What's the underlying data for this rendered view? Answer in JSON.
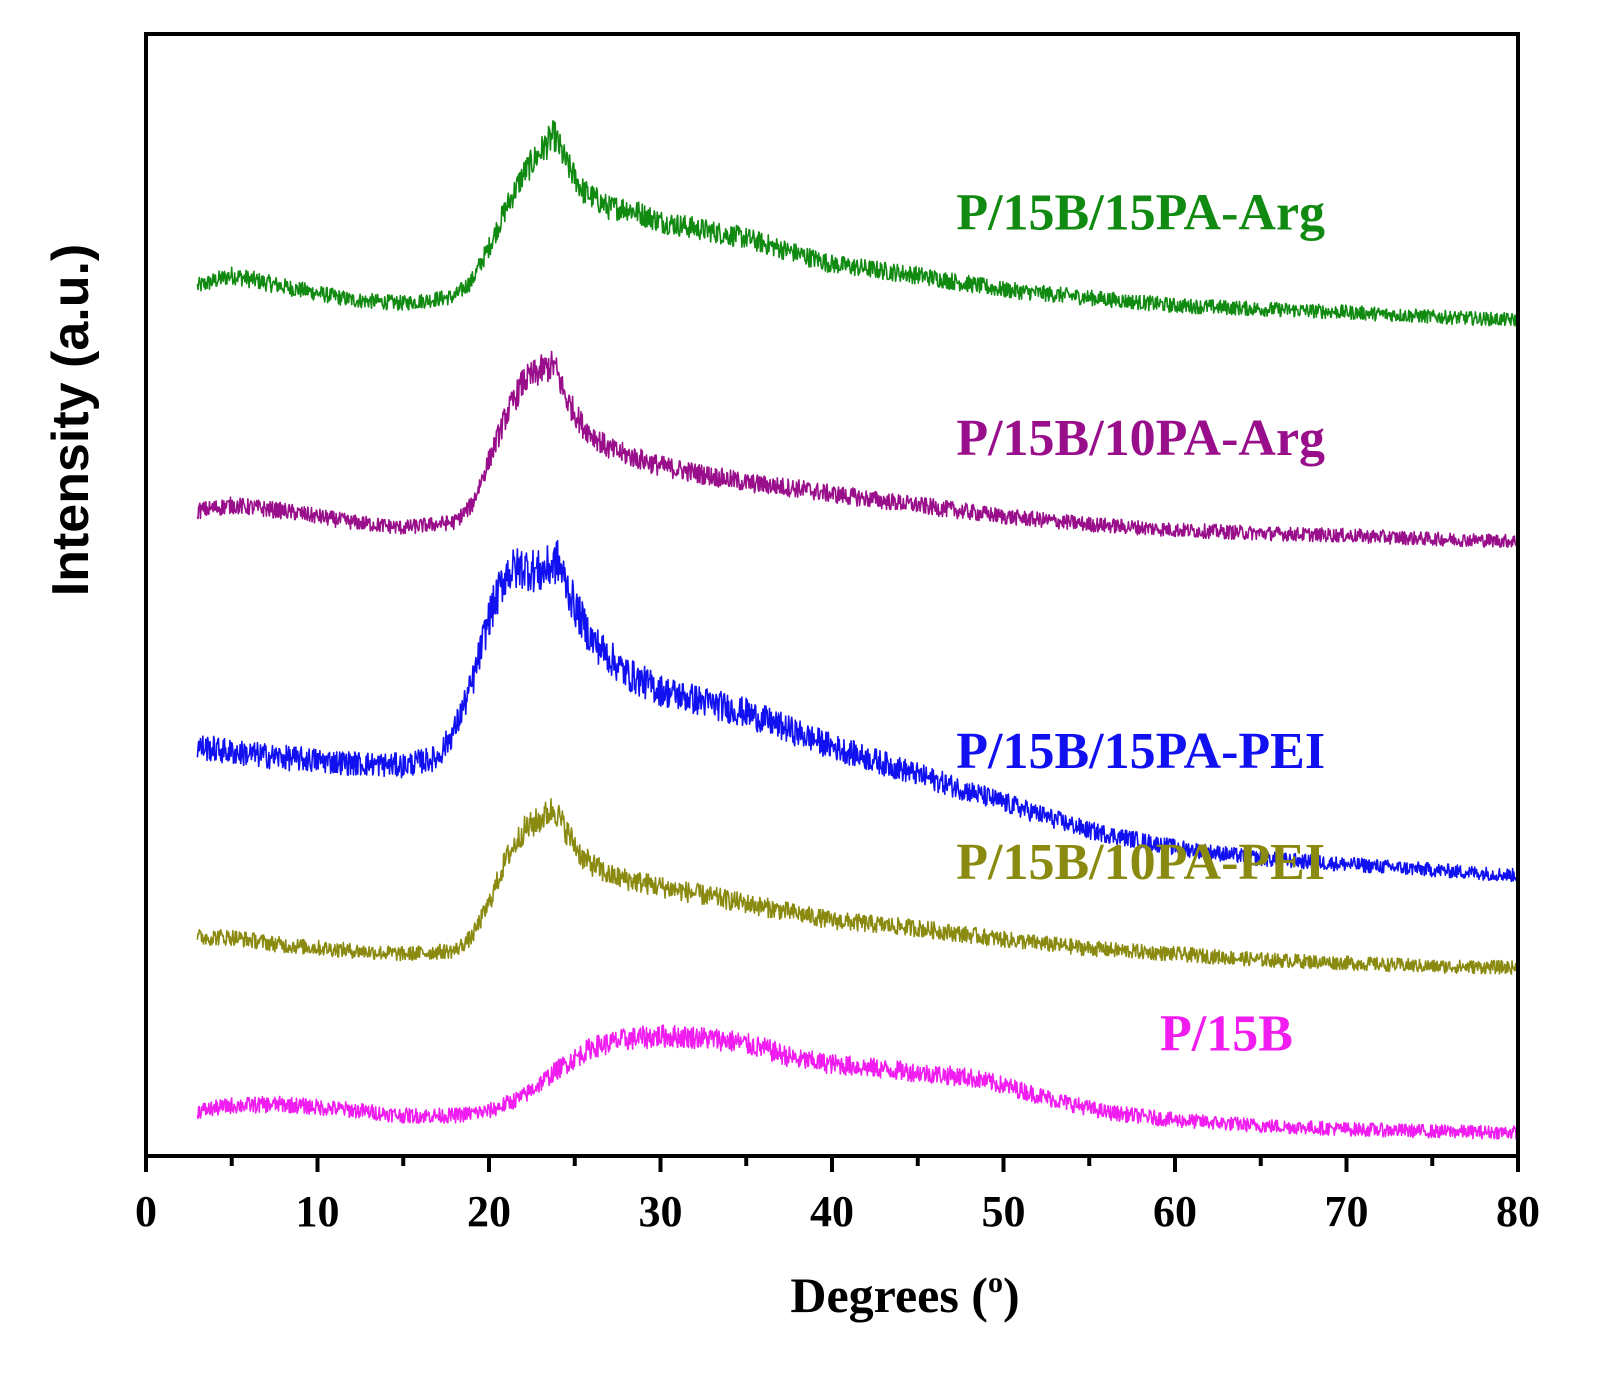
{
  "chart_data": {
    "type": "line",
    "title": "",
    "xlabel": "Degrees (",
    "xlabel_sup": "o",
    "xlabel_end": ")",
    "ylabel": "Intensity (a.u.)",
    "xlim": [
      0,
      80
    ],
    "ylim": [
      0,
      100
    ],
    "xticks": [
      0,
      10,
      20,
      30,
      40,
      50,
      60,
      70,
      80
    ],
    "xtick_labels": [
      "0",
      "10",
      "20",
      "30",
      "40",
      "50",
      "60",
      "70",
      "80"
    ],
    "yticks_shown": false,
    "grid": false,
    "x_range_data": [
      3,
      80
    ],
    "series": [
      {
        "name": "P/15B/15PA-Arg",
        "color": "#118a11",
        "label_x": 58,
        "points": [
          [
            3,
            77.5
          ],
          [
            5,
            78.5
          ],
          [
            8,
            77.5
          ],
          [
            12,
            76.3
          ],
          [
            15,
            76
          ],
          [
            18,
            76.6
          ],
          [
            19,
            78
          ],
          [
            20,
            81
          ],
          [
            21,
            84.5
          ],
          [
            22,
            87.5
          ],
          [
            23,
            89.5
          ],
          [
            23.8,
            91
          ],
          [
            24.5,
            88.5
          ],
          [
            25.5,
            86
          ],
          [
            27,
            84.5
          ],
          [
            28,
            84.5
          ],
          [
            30,
            83.3
          ],
          [
            35,
            81.8
          ],
          [
            40,
            79.5
          ],
          [
            45,
            78.5
          ],
          [
            50,
            77.2
          ],
          [
            55,
            76.5
          ],
          [
            60,
            75.8
          ],
          [
            65,
            75.5
          ],
          [
            70,
            75.2
          ],
          [
            75,
            74.8
          ],
          [
            80,
            74.5
          ]
        ]
      },
      {
        "name": "P/15B/10PA-Arg",
        "color": "#990e8a",
        "label_x": 58,
        "points": [
          [
            3,
            57.5
          ],
          [
            5,
            58
          ],
          [
            8,
            57.5
          ],
          [
            12,
            56.5
          ],
          [
            15,
            56
          ],
          [
            18,
            56.5
          ],
          [
            19,
            58
          ],
          [
            20,
            62
          ],
          [
            21,
            66
          ],
          [
            22,
            69
          ],
          [
            23,
            70
          ],
          [
            23.8,
            70.5
          ],
          [
            24.5,
            67.5
          ],
          [
            25.5,
            65
          ],
          [
            27,
            63
          ],
          [
            30,
            61.5
          ],
          [
            35,
            60
          ],
          [
            38,
            59.5
          ],
          [
            40,
            59
          ],
          [
            45,
            58
          ],
          [
            50,
            57
          ],
          [
            55,
            56.3
          ],
          [
            60,
            55.8
          ],
          [
            65,
            55.5
          ],
          [
            70,
            55.3
          ],
          [
            75,
            55
          ],
          [
            80,
            54.8
          ]
        ]
      },
      {
        "name": "P/15B/15PA-PEI",
        "color": "#1010f0",
        "label_x": 58,
        "points": [
          [
            3,
            36.5
          ],
          [
            5,
            36
          ],
          [
            8,
            35.5
          ],
          [
            12,
            35
          ],
          [
            15,
            34.8
          ],
          [
            17,
            35.5
          ],
          [
            18,
            38
          ],
          [
            19,
            42
          ],
          [
            20,
            48
          ],
          [
            21,
            52
          ],
          [
            22,
            52.5
          ],
          [
            23,
            52
          ],
          [
            24,
            53
          ],
          [
            25,
            49
          ],
          [
            26,
            46
          ],
          [
            28,
            43
          ],
          [
            30,
            41.5
          ],
          [
            35,
            39.5
          ],
          [
            40,
            36.5
          ],
          [
            45,
            34
          ],
          [
            50,
            31.5
          ],
          [
            55,
            29
          ],
          [
            60,
            27.5
          ],
          [
            65,
            26.5
          ],
          [
            70,
            26
          ],
          [
            75,
            25.5
          ],
          [
            80,
            25
          ]
        ]
      },
      {
        "name": "P/15B/10PA-PEI",
        "color": "#8a8a10",
        "label_x": 58,
        "points": [
          [
            3,
            19.5
          ],
          [
            5,
            19.5
          ],
          [
            8,
            18.8
          ],
          [
            12,
            18.3
          ],
          [
            15,
            18
          ],
          [
            18,
            18.3
          ],
          [
            19,
            19.5
          ],
          [
            20,
            22.5
          ],
          [
            21,
            26.5
          ],
          [
            22,
            29
          ],
          [
            23,
            30
          ],
          [
            23.8,
            31
          ],
          [
            24.5,
            29
          ],
          [
            25.5,
            26.5
          ],
          [
            27,
            25
          ],
          [
            30,
            24
          ],
          [
            35,
            22.5
          ],
          [
            40,
            21
          ],
          [
            45,
            20.3
          ],
          [
            50,
            19.3
          ],
          [
            55,
            18.5
          ],
          [
            60,
            18
          ],
          [
            65,
            17.5
          ],
          [
            70,
            17.2
          ],
          [
            75,
            16.9
          ],
          [
            80,
            16.8
          ]
        ]
      },
      {
        "name": "P/15B",
        "color": "#f01cf0",
        "label_x": 63,
        "points": [
          [
            3,
            4
          ],
          [
            5,
            4.5
          ],
          [
            8,
            4.6
          ],
          [
            12,
            4.1
          ],
          [
            15,
            3.6
          ],
          [
            18,
            3.6
          ],
          [
            20,
            4
          ],
          [
            22,
            5.3
          ],
          [
            24,
            7.7
          ],
          [
            26,
            9.7
          ],
          [
            28,
            10.4
          ],
          [
            30,
            10.7
          ],
          [
            32,
            10.6
          ],
          [
            34,
            10.3
          ],
          [
            36,
            9.6
          ],
          [
            38,
            8.6
          ],
          [
            40,
            8.2
          ],
          [
            44,
            7.6
          ],
          [
            48,
            7
          ],
          [
            50,
            6.3
          ],
          [
            53,
            5
          ],
          [
            56,
            3.9
          ],
          [
            60,
            3.2
          ],
          [
            65,
            2.7
          ],
          [
            70,
            2.4
          ],
          [
            75,
            2.2
          ],
          [
            80,
            2.1
          ]
        ]
      }
    ]
  }
}
